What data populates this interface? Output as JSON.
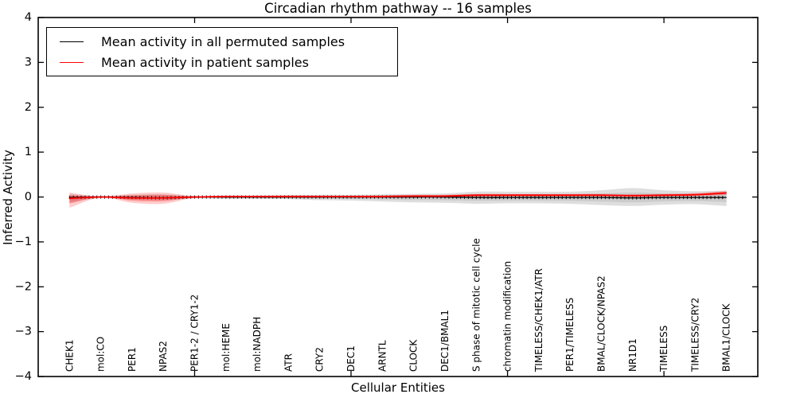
{
  "window": {
    "background": "#ffffff"
  },
  "chart_data": {
    "type": "line",
    "title": "Circadian rhythm pathway -- 16 samples",
    "xlabel": "Cellular Entities",
    "ylabel": "Inferred Activity",
    "ylim": [
      -4,
      4
    ],
    "yticks": [
      4,
      3,
      2,
      1,
      0,
      -1,
      -2,
      -3,
      -4
    ],
    "xlim": [
      -1,
      22
    ],
    "xticks_numeric": [
      4,
      9,
      14,
      19
    ],
    "grid": false,
    "legend": {
      "position": "upper left",
      "entries": [
        {
          "label": "Mean activity in all permuted samples",
          "color": "#000000"
        },
        {
          "label": "Mean activity in patient samples",
          "color": "#ff0000"
        }
      ]
    },
    "categories": [
      "CHEK1",
      "mol:CO",
      "PER1",
      "NPAS2",
      "PER1-2 / CRY1-2",
      "mol:HEME",
      "mol:NADPH",
      "ATR",
      "CRY2",
      "DEC1",
      "ARNTL",
      "CLOCK",
      "DEC1/BMAL1",
      "S phase of mitotic cell cycle",
      "chromatin modification",
      "TIMELESS/CHEK1/ATR",
      "PER1/TIMELESS",
      "BMAL/CLOCK/NPAS2",
      "NR1D1",
      "TIMELESS",
      "TIMELESS/CRY2",
      "BMAL1/CLOCK"
    ],
    "series": [
      {
        "name": "Mean activity in all permuted samples",
        "color": "#000000",
        "values": [
          -0.01,
          0.0,
          -0.01,
          -0.02,
          0.0,
          0.0,
          0.0,
          0.0,
          0.0,
          0.0,
          0.0,
          0.0,
          0.0,
          -0.01,
          -0.01,
          -0.01,
          -0.01,
          -0.01,
          -0.02,
          -0.01,
          -0.01,
          -0.01
        ]
      },
      {
        "name": "Mean activity in patient samples",
        "color": "#ff0000",
        "values": [
          -0.03,
          0.0,
          -0.02,
          -0.02,
          0.0,
          0.01,
          0.01,
          0.01,
          0.01,
          0.01,
          0.01,
          0.02,
          0.02,
          0.04,
          0.04,
          0.04,
          0.04,
          0.04,
          0.03,
          0.04,
          0.05,
          0.09
        ]
      }
    ],
    "bands": [
      {
        "name": "permuted-samples-range",
        "color": "#000000",
        "outer_alpha": 0.13,
        "inner_alpha": 0.08,
        "hi": [
          0.07,
          0.02,
          0.05,
          0.06,
          0.02,
          0.03,
          0.03,
          0.04,
          0.05,
          0.05,
          0.06,
          0.07,
          0.08,
          0.12,
          0.12,
          0.12,
          0.12,
          0.15,
          0.2,
          0.15,
          0.13,
          0.14
        ],
        "lo": [
          -0.12,
          -0.02,
          -0.06,
          -0.07,
          -0.03,
          -0.04,
          -0.04,
          -0.05,
          -0.07,
          -0.08,
          -0.1,
          -0.12,
          -0.13,
          -0.15,
          -0.14,
          -0.14,
          -0.15,
          -0.18,
          -0.2,
          -0.17,
          -0.16,
          -0.2
        ]
      },
      {
        "name": "patient-samples-range",
        "color": "#ff0000",
        "outer_alpha": 0.2,
        "inner_alpha": 0.28,
        "hi": [
          0.1,
          0.01,
          0.08,
          0.1,
          0.02,
          0.03,
          0.03,
          0.04,
          0.03,
          0.03,
          0.04,
          0.05,
          0.05,
          0.07,
          0.07,
          0.07,
          0.07,
          0.07,
          0.06,
          0.07,
          0.09,
          0.14
        ],
        "lo": [
          -0.24,
          -0.01,
          -0.13,
          -0.15,
          -0.02,
          -0.02,
          -0.02,
          -0.02,
          -0.02,
          -0.01,
          -0.02,
          -0.01,
          -0.01,
          0.0,
          0.01,
          0.01,
          0.01,
          0.01,
          0.0,
          0.01,
          0.02,
          0.04
        ]
      }
    ]
  }
}
